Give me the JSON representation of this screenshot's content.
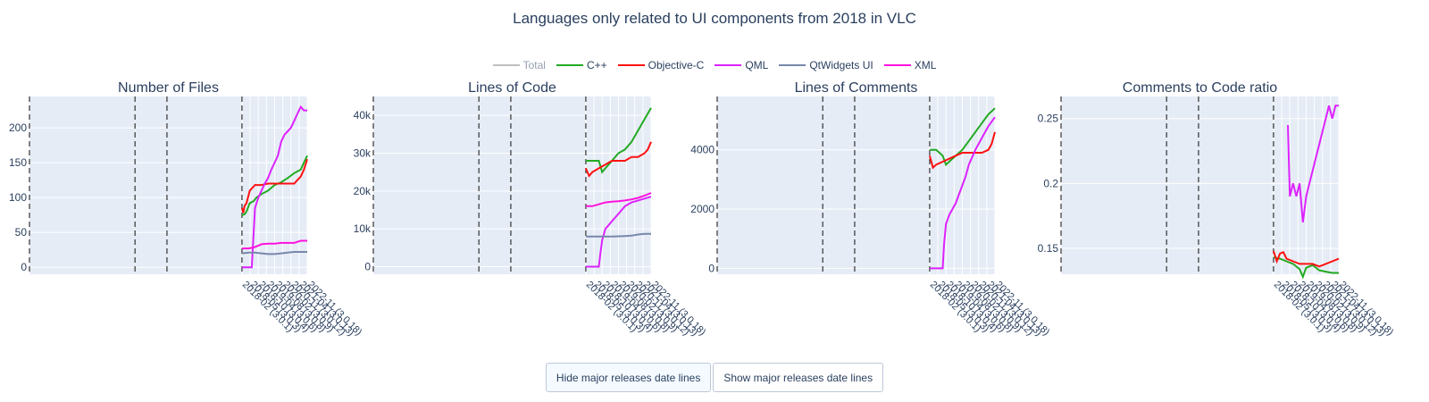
{
  "title": "Languages only related to UI components from 2018 in VLC",
  "legend": [
    {
      "name": "Total",
      "color": "#808080",
      "visible": false
    },
    {
      "name": "C++",
      "color": "#22aa22",
      "visible": true
    },
    {
      "name": "Objective-C",
      "color": "#ff1111",
      "visible": true
    },
    {
      "name": "QML",
      "color": "#dd22ff",
      "visible": true
    },
    {
      "name": "QtWidgets UI",
      "color": "#7788aa",
      "visible": true
    },
    {
      "name": "XML",
      "color": "#ff11dd",
      "visible": true
    }
  ],
  "buttons": {
    "hide": "Hide major releases date lines",
    "show": "Show major releases date lines"
  },
  "x_ticks": [
    "2018-02 (3.0.1)",
    "2018-05 (3.0.3)",
    "2018-10 (3.0.4)",
    "2019-04 (3.0.6)",
    "2019-08 (3.0.8)",
    "2020-02 (3.0.9)",
    "2020-11 (3.0.12)",
    "2021-04 (3.0.13)",
    "2022-11 (3.0.18)"
  ],
  "chart_data": [
    {
      "type": "line",
      "title": "Number of Files",
      "yticks": [
        "0",
        "50",
        "100",
        "150",
        "200"
      ],
      "ylim": [
        -10,
        245
      ],
      "series": [
        {
          "name": "C++",
          "x": [
            0,
            0.04,
            0.07,
            0.12,
            0.18,
            0.22,
            0.3,
            0.4,
            0.5,
            0.6,
            0.7,
            0.8,
            0.9,
            0.95,
            1.0
          ],
          "y": [
            75,
            76,
            80,
            92,
            95,
            100,
            105,
            110,
            118,
            122,
            128,
            135,
            140,
            150,
            160
          ]
        },
        {
          "name": "Objective-C",
          "x": [
            0,
            0.02,
            0.04,
            0.07,
            0.12,
            0.2,
            0.3,
            0.4,
            0.5,
            0.6,
            0.7,
            0.8,
            0.85,
            0.9,
            0.95,
            1.0
          ],
          "y": [
            85,
            78,
            88,
            92,
            110,
            118,
            118,
            120,
            120,
            120,
            120,
            120,
            125,
            130,
            140,
            155
          ]
        },
        {
          "name": "QML",
          "x": [
            0,
            0.15,
            0.2,
            0.25,
            0.3,
            0.35,
            0.4,
            0.45,
            0.5,
            0.55,
            0.6,
            0.65,
            0.7,
            0.75,
            0.8,
            0.85,
            0.9,
            0.95,
            1.0
          ],
          "y": [
            0,
            0,
            85,
            100,
            110,
            120,
            128,
            140,
            150,
            160,
            180,
            190,
            195,
            200,
            210,
            220,
            230,
            225,
            225
          ]
        },
        {
          "name": "QtWidgets UI",
          "x": [
            0,
            0.1,
            0.2,
            0.3,
            0.4,
            0.5,
            0.6,
            0.7,
            0.8,
            0.9,
            1.0
          ],
          "y": [
            20,
            21,
            21,
            20,
            19,
            19,
            20,
            21,
            22,
            22,
            22
          ]
        },
        {
          "name": "XML",
          "x": [
            0,
            0.1,
            0.2,
            0.3,
            0.4,
            0.5,
            0.6,
            0.7,
            0.8,
            0.9,
            1.0
          ],
          "y": [
            27,
            27,
            29,
            33,
            34,
            34,
            35,
            35,
            35,
            38,
            38
          ]
        }
      ]
    },
    {
      "type": "line",
      "title": "Lines of Code",
      "yticks": [
        "0",
        "10k",
        "20k",
        "30k",
        "40k"
      ],
      "ylim": [
        -2000,
        45000
      ],
      "series": [
        {
          "name": "C++",
          "x": [
            0,
            0.1,
            0.2,
            0.25,
            0.3,
            0.4,
            0.5,
            0.6,
            0.7,
            0.8,
            0.9,
            1.0
          ],
          "y": [
            28000,
            28000,
            28000,
            25000,
            26000,
            28000,
            30000,
            31000,
            33000,
            36000,
            39000,
            42000
          ]
        },
        {
          "name": "Objective-C",
          "x": [
            0,
            0.05,
            0.1,
            0.2,
            0.3,
            0.4,
            0.5,
            0.6,
            0.7,
            0.8,
            0.9,
            0.95,
            1.0
          ],
          "y": [
            26000,
            24000,
            25000,
            26000,
            27000,
            28000,
            28000,
            28000,
            29000,
            29000,
            30000,
            31000,
            33000
          ]
        },
        {
          "name": "QML",
          "x": [
            0,
            0.2,
            0.22,
            0.25,
            0.3,
            0.35,
            0.4,
            0.45,
            0.5,
            0.55,
            0.6,
            0.7,
            0.8,
            0.9,
            1.0
          ],
          "y": [
            0,
            0,
            3000,
            7000,
            10000,
            11000,
            12000,
            13000,
            14000,
            15000,
            16000,
            17000,
            17500,
            18000,
            18500
          ]
        },
        {
          "name": "QtWidgets UI",
          "x": [
            0,
            0.2,
            0.4,
            0.6,
            0.7,
            0.8,
            0.9,
            1.0
          ],
          "y": [
            8000,
            8000,
            8000,
            8100,
            8200,
            8500,
            8700,
            8700
          ]
        },
        {
          "name": "XML",
          "x": [
            0,
            0.1,
            0.2,
            0.3,
            0.4,
            0.5,
            0.6,
            0.7,
            0.8,
            0.9,
            1.0
          ],
          "y": [
            16000,
            16000,
            16500,
            17000,
            17200,
            17300,
            17500,
            17800,
            18200,
            18800,
            19500
          ]
        }
      ]
    },
    {
      "type": "line",
      "title": "Lines of Comments",
      "yticks": [
        "0",
        "2000",
        "4000"
      ],
      "ylim": [
        -200,
        5800
      ],
      "series": [
        {
          "name": "C++",
          "x": [
            0,
            0.1,
            0.2,
            0.25,
            0.3,
            0.4,
            0.5,
            0.6,
            0.7,
            0.8,
            0.9,
            1.0
          ],
          "y": [
            4000,
            4000,
            3800,
            3500,
            3600,
            3800,
            4000,
            4300,
            4600,
            4900,
            5200,
            5400
          ]
        },
        {
          "name": "Objective-C",
          "x": [
            0,
            0.05,
            0.1,
            0.2,
            0.3,
            0.4,
            0.5,
            0.6,
            0.7,
            0.8,
            0.9,
            0.95,
            1.0
          ],
          "y": [
            3800,
            3400,
            3500,
            3600,
            3700,
            3800,
            3900,
            3900,
            3900,
            3900,
            4000,
            4200,
            4600
          ]
        },
        {
          "name": "QML",
          "x": [
            0,
            0.2,
            0.22,
            0.25,
            0.3,
            0.35,
            0.4,
            0.45,
            0.5,
            0.55,
            0.6,
            0.7,
            0.8,
            0.9,
            1.0
          ],
          "y": [
            0,
            0,
            800,
            1500,
            1800,
            2000,
            2200,
            2500,
            2800,
            3100,
            3500,
            4000,
            4400,
            4800,
            5100
          ]
        }
      ]
    },
    {
      "type": "line",
      "title": "Comments to Code ratio",
      "yticks": [
        "0.15",
        "0.2",
        "0.25"
      ],
      "ylim": [
        0.13,
        0.267
      ],
      "series": [
        {
          "name": "C++",
          "x": [
            0,
            0.1,
            0.2,
            0.3,
            0.4,
            0.45,
            0.5,
            0.6,
            0.7,
            0.8,
            0.9,
            1.0
          ],
          "y": [
            0.143,
            0.142,
            0.14,
            0.138,
            0.134,
            0.128,
            0.135,
            0.137,
            0.133,
            0.132,
            0.131,
            0.131
          ]
        },
        {
          "name": "Objective-C",
          "x": [
            0,
            0.05,
            0.1,
            0.15,
            0.2,
            0.3,
            0.4,
            0.5,
            0.6,
            0.7,
            0.8,
            0.9,
            1.0
          ],
          "y": [
            0.148,
            0.14,
            0.146,
            0.147,
            0.142,
            0.14,
            0.138,
            0.138,
            0.138,
            0.136,
            0.138,
            0.14,
            0.142
          ]
        },
        {
          "name": "QML",
          "x": [
            0.22,
            0.25,
            0.3,
            0.35,
            0.4,
            0.45,
            0.5,
            0.55,
            0.6,
            0.65,
            0.7,
            0.75,
            0.8,
            0.85,
            0.9,
            0.95,
            1.0
          ],
          "y": [
            0.245,
            0.19,
            0.2,
            0.19,
            0.2,
            0.17,
            0.19,
            0.2,
            0.21,
            0.22,
            0.23,
            0.24,
            0.25,
            0.26,
            0.25,
            0.26,
            0.26
          ]
        }
      ]
    }
  ]
}
